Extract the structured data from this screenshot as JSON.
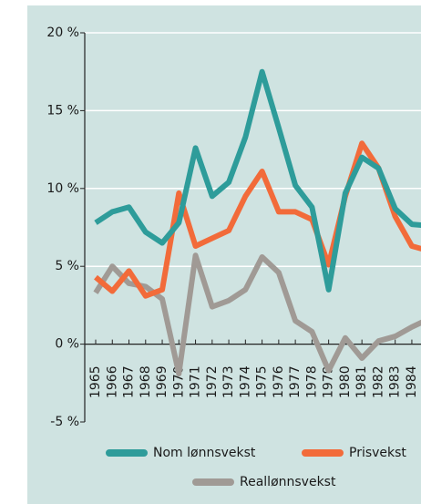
{
  "chart_data": {
    "type": "line",
    "categories": [
      "1965",
      "1966",
      "1967",
      "1968",
      "1969",
      "1970",
      "1971",
      "1972",
      "1973",
      "1974",
      "1975",
      "1976",
      "1977",
      "1978",
      "1979",
      "1980",
      "1981",
      "1982",
      "1983",
      "1984",
      null
    ],
    "series": [
      {
        "name": "Nom lønnsvekst",
        "color": "#2e9c9a",
        "values": [
          7.8,
          8.5,
          8.8,
          7.2,
          6.5,
          7.8,
          12.6,
          9.5,
          10.4,
          13.3,
          17.5,
          13.9,
          10.2,
          8.8,
          3.5,
          9.7,
          12.0,
          11.3,
          8.7,
          7.7,
          7.6
        ]
      },
      {
        "name": "Prisvekst",
        "color": "#f26b3a",
        "values": [
          4.3,
          3.4,
          4.7,
          3.1,
          3.5,
          9.7,
          6.3,
          6.8,
          7.3,
          9.5,
          11.1,
          8.5,
          8.5,
          8.0,
          5.1,
          9.5,
          12.9,
          11.3,
          8.2,
          6.3,
          6.0
        ]
      },
      {
        "name": "Reallønnsvekst",
        "color": "#a09a95",
        "values": [
          3.3,
          5.0,
          3.9,
          3.7,
          2.9,
          -1.9,
          5.7,
          2.4,
          2.8,
          3.5,
          5.6,
          4.6,
          1.5,
          0.8,
          -1.7,
          0.4,
          -0.9,
          0.2,
          0.5,
          1.1,
          1.6
        ]
      }
    ],
    "ylim": [
      -5,
      20
    ],
    "yticks": [
      {
        "value": -5,
        "label": "-5 %"
      },
      {
        "value": 0,
        "label": "0 %"
      },
      {
        "value": 5,
        "label": "5 %"
      },
      {
        "value": 10,
        "label": "10 %"
      },
      {
        "value": 15,
        "label": "15 %"
      },
      {
        "value": 20,
        "label": "20 %"
      }
    ],
    "grid": true
  }
}
